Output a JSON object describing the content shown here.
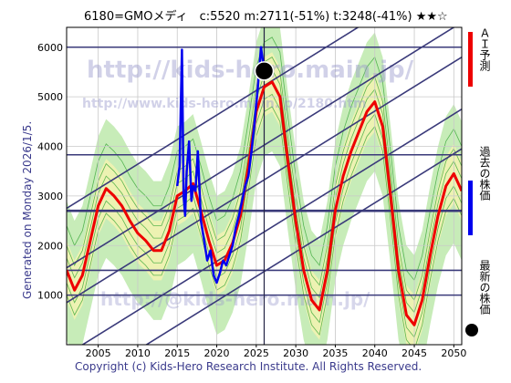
{
  "header": {
    "title": "6180=GMOメディ　c:5520  m:2711(-51%)  t:3248(-41%)  ★★☆",
    "generated": "Generated on Monday 2026/1/5.",
    "watermark1": "http://kids-hero.main.jp/",
    "watermark2": "http://www.kids-hero.main.jp/2180.htm",
    "watermark3": "http://@kids-hero.main.jp/"
  },
  "footer": {
    "copyright": "Copyright (c) Kids-Hero Research Institute. All Rights Reserved."
  },
  "legend": {
    "ai": "ＡＩ予測",
    "past": "過去の株価",
    "last": "最新の株価"
  },
  "colors": {
    "ai": "#ee0000",
    "past": "#0000ee",
    "band": "#3a3a7a",
    "green_fill": "#b4e6a0",
    "yellow_fill": "#f6f4b0",
    "grid": "#c8c8c8"
  },
  "chart_data": {
    "type": "line",
    "title": "6180=GMOメディ　c:5520  m:2711(-51%)  t:3248(-41%)  ★★☆",
    "x_ticks": [
      2005,
      2010,
      2015,
      2020,
      2025,
      2030,
      2035,
      2040,
      2045,
      2050
    ],
    "y_ticks": [
      1000,
      2000,
      3000,
      4000,
      5000,
      6000
    ],
    "xlim": [
      2001,
      2051
    ],
    "ylim": [
      0,
      6400
    ],
    "grid": true,
    "horizontal_levels": [
      6000,
      3830,
      2700,
      1500,
      1000
    ],
    "trend_lines": [
      {
        "x": [
          2001,
          2051
        ],
        "y": [
          2750,
          7700
        ]
      },
      {
        "x": [
          2001,
          2051
        ],
        "y": [
          1550,
          6500
        ]
      },
      {
        "x": [
          2001,
          2051
        ],
        "y": [
          850,
          5800
        ]
      },
      {
        "x": [
          2001,
          2051
        ],
        "y": [
          -200,
          4750
        ]
      },
      {
        "x": [
          2001,
          2051
        ],
        "y": [
          -1000,
          3950
        ]
      }
    ],
    "now_marker": {
      "x": 2026.0,
      "y": 5520
    },
    "series": [
      {
        "name": "AI予測",
        "x": [
          2001,
          2002,
          2003,
          2004,
          2005,
          2006,
          2007,
          2008,
          2009,
          2010,
          2011,
          2012,
          2013,
          2014,
          2015,
          2016,
          2017,
          2018,
          2019,
          2020,
          2021,
          2022,
          2023,
          2024,
          2025,
          2026,
          2027,
          2028,
          2029,
          2030,
          2031,
          2032,
          2033,
          2034,
          2035,
          2036,
          2037,
          2038,
          2039,
          2040,
          2041,
          2042,
          2043,
          2044,
          2045,
          2046,
          2047,
          2048,
          2049,
          2050,
          2051
        ],
        "y": [
          1500,
          1100,
          1400,
          2100,
          2800,
          3150,
          3000,
          2800,
          2500,
          2250,
          2100,
          1900,
          1900,
          2300,
          3000,
          3100,
          3250,
          2700,
          2100,
          1600,
          1700,
          2050,
          2600,
          3600,
          4700,
          5200,
          5300,
          5000,
          3700,
          2500,
          1500,
          900,
          700,
          1500,
          2700,
          3400,
          3900,
          4300,
          4700,
          4900,
          4400,
          3000,
          1500,
          600,
          400,
          900,
          1800,
          2600,
          3200,
          3450,
          3100
        ]
      },
      {
        "name": "過去の株価",
        "x": [
          2015.0,
          2015.3,
          2015.6,
          2015.8,
          2016.0,
          2016.2,
          2016.5,
          2016.8,
          2017.0,
          2017.3,
          2017.6,
          2018.0,
          2018.4,
          2018.8,
          2019.2,
          2019.6,
          2020.0,
          2020.4,
          2020.8,
          2021.2,
          2021.6,
          2022.0,
          2022.4,
          2022.8,
          2023.2,
          2023.6,
          2024.0,
          2024.4,
          2024.8,
          2025.2,
          2025.6,
          2026.0
        ],
        "y": [
          3200,
          3600,
          5950,
          3000,
          2600,
          3500,
          4100,
          2900,
          3200,
          3100,
          3900,
          2500,
          2100,
          1700,
          1900,
          1400,
          1250,
          1450,
          1700,
          1600,
          1800,
          2000,
          2350,
          2600,
          2900,
          3200,
          3400,
          3900,
          4500,
          5200,
          6000,
          5520
        ]
      }
    ]
  }
}
